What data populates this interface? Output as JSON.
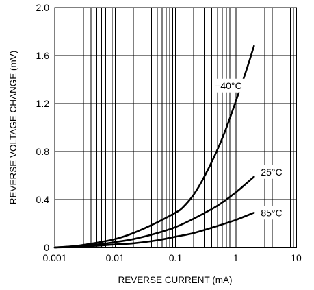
{
  "chart_data": {
    "type": "line",
    "title": "",
    "xlabel": "REVERSE CURRENT (mA)",
    "ylabel": "REVERSE VOLTAGE CHANGE (mV)",
    "x_scale": "log",
    "xlim": [
      0.001,
      10
    ],
    "ylim": [
      0,
      2.0
    ],
    "x_ticks": [
      "0.001",
      "0.01",
      "0.1",
      "1",
      "10"
    ],
    "y_ticks": [
      "0",
      "0.4",
      "0.8",
      "1.2",
      "1.6",
      "2.0"
    ],
    "grid": true,
    "series": [
      {
        "name": "−40°C",
        "x": [
          0.001,
          0.002,
          0.005,
          0.01,
          0.02,
          0.05,
          0.1,
          0.13,
          0.2,
          0.3,
          0.5,
          0.7,
          1.0,
          1.5,
          2.0
        ],
        "y": [
          0.0,
          0.01,
          0.04,
          0.07,
          0.12,
          0.21,
          0.29,
          0.33,
          0.44,
          0.59,
          0.82,
          1.0,
          1.22,
          1.48,
          1.68
        ]
      },
      {
        "name": "25°C",
        "x": [
          0.001,
          0.002,
          0.005,
          0.01,
          0.02,
          0.05,
          0.1,
          0.2,
          0.5,
          1.0,
          2.0
        ],
        "y": [
          0.0,
          0.01,
          0.025,
          0.045,
          0.07,
          0.12,
          0.17,
          0.24,
          0.35,
          0.46,
          0.59
        ]
      },
      {
        "name": "85°C",
        "x": [
          0.001,
          0.002,
          0.005,
          0.01,
          0.02,
          0.05,
          0.1,
          0.2,
          0.5,
          1.0,
          2.0
        ],
        "y": [
          0.0,
          0.005,
          0.015,
          0.025,
          0.035,
          0.06,
          0.09,
          0.12,
          0.18,
          0.23,
          0.29
        ]
      }
    ]
  }
}
